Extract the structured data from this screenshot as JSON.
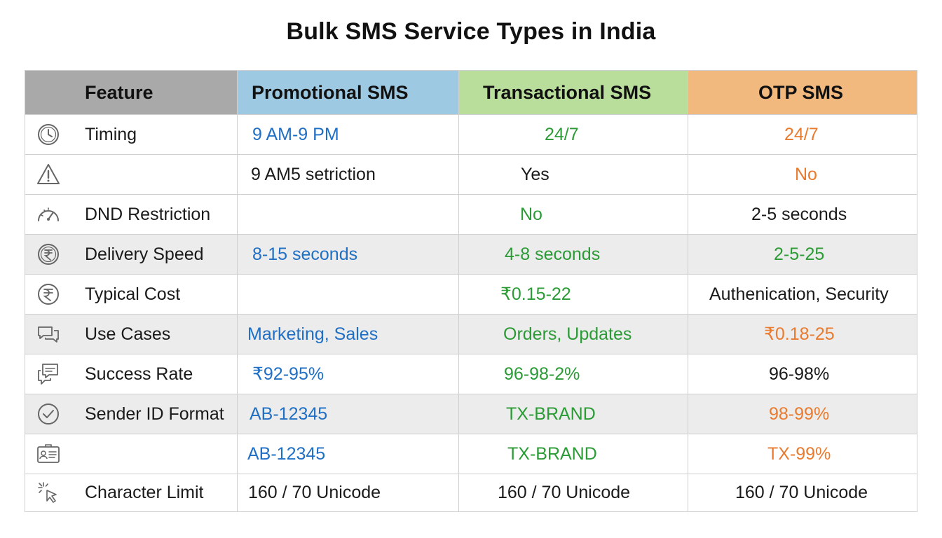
{
  "title": "Bulk SMS Service Types in India",
  "colors": {
    "header_feature": "#a9a9a9",
    "header_promotional": "#9ec9e3",
    "header_transactional": "#b9dd9a",
    "header_otp": "#f2b97e",
    "text_blue": "#1f6fc5",
    "text_green": "#2b9b35",
    "text_orange": "#ea7b2e"
  },
  "table": {
    "headers": [
      "Feature",
      "Promotional SMS",
      "Transactional SMS",
      "OTP SMS"
    ],
    "rows": [
      {
        "icon": "clock-icon",
        "feature": "Timing",
        "promotional": "9 AM-9 PM",
        "transactional": "24/7",
        "otp": "24/7"
      },
      {
        "icon": "warning-icon",
        "feature": "",
        "promotional": "9 AM5 setriction",
        "transactional": "Yes",
        "otp": "No"
      },
      {
        "icon": "speedometer-icon",
        "feature": "DND Restriction",
        "promotional": "",
        "transactional": "No",
        "otp": "2-5 seconds"
      },
      {
        "icon": "rupee-coin-icon",
        "feature": "Delivery Speed",
        "promotional": "8-15 seconds",
        "transactional": "4-8 seconds",
        "otp": "2-5-25"
      },
      {
        "icon": "rupee-icon",
        "feature": "Typical Cost",
        "promotional": "",
        "transactional": "₹0.15-22",
        "otp": "Authenication, Security"
      },
      {
        "icon": "chat-bubbles-icon",
        "feature": "Use Cases",
        "promotional": "Marketing, Sales",
        "transactional": "Orders, Updates",
        "otp": "₹0.18-25"
      },
      {
        "icon": "message-icon",
        "feature": "Success Rate",
        "promotional": "₹92-95%",
        "transactional": "96-98-2%",
        "otp": "96-98%"
      },
      {
        "icon": "check-circle-icon",
        "feature": "Sender ID Format",
        "promotional": "AB-12345",
        "transactional": "TX-BRAND",
        "otp": "98-99%"
      },
      {
        "icon": "id-card-icon",
        "feature": "",
        "promotional": "AB-12345",
        "transactional": "TX-BRAND",
        "otp": "TX-99%"
      },
      {
        "icon": "cursor-click-icon",
        "feature": "Character Limit",
        "promotional": "160 / 70 Unicode",
        "transactional": "160 / 70 Unicode",
        "otp": "160 / 70 Unicode"
      }
    ]
  }
}
